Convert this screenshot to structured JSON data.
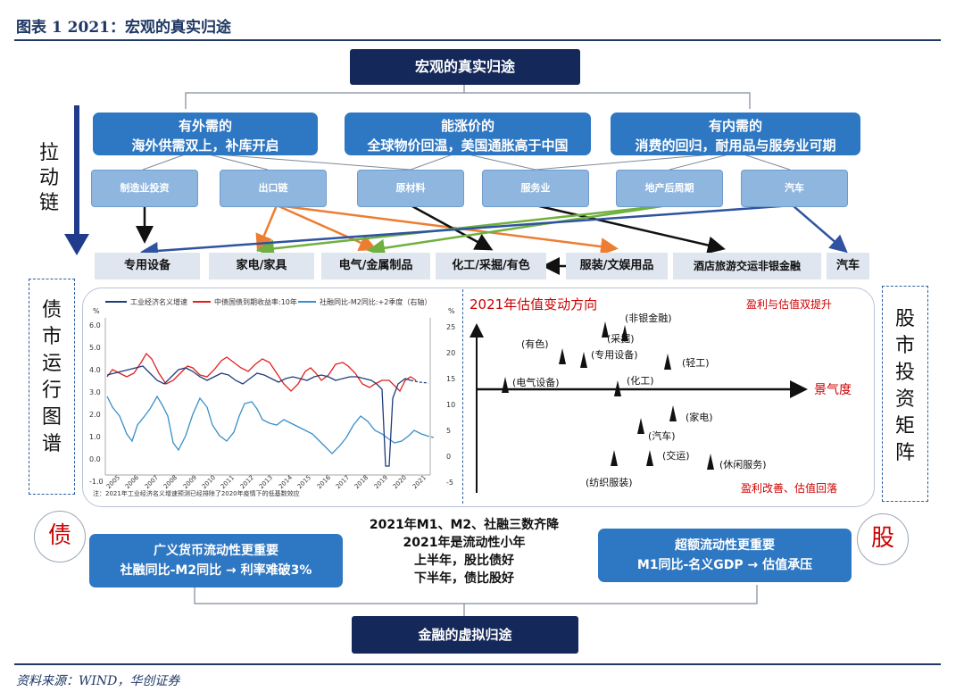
{
  "figure_title": "图表 1   2021：宏观的真实归途",
  "top_box": "宏观的真实归途",
  "left_vertical": "拉动链",
  "categories": [
    {
      "title": "有外需的",
      "subtitle": "海外供需双上，补库开启"
    },
    {
      "title": "能涨价的",
      "subtitle": "全球物价回温，美国通胀高于中国"
    },
    {
      "title": "有内需的",
      "subtitle": "消费的回归，耐用品与服务业可期"
    }
  ],
  "drivers": [
    "制造业投资",
    "出口链",
    "原材料",
    "服务业",
    "地产后周期",
    "汽车"
  ],
  "sectors": [
    "专用设备",
    "家电/家具",
    "电气/金属制品",
    "化工/采掘/有色",
    "服装/文娱用品",
    "酒店旅游交运非银金融",
    "汽车"
  ],
  "bond_map_label": "债市运行图谱",
  "stock_matrix_label": "股市投资矩阵",
  "line_chart": {
    "legend": [
      "工业经济名义增速",
      "中债国债到期收益率:10年",
      "社融同比-M2同比:+2季度（右轴）"
    ],
    "left_unit": "%",
    "right_unit": "%",
    "left_ticks": [
      "6.0",
      "5.0",
      "4.0",
      "3.0",
      "2.0",
      "1.0",
      "0.0",
      "-1.0"
    ],
    "right_ticks": [
      "25",
      "20",
      "15",
      "10",
      "5",
      "0",
      "-5"
    ],
    "x_ticks": [
      "2005",
      "2006",
      "2007",
      "2008",
      "2009",
      "2010",
      "2011",
      "2012",
      "2013",
      "2014",
      "2015",
      "2016",
      "2017",
      "2018",
      "2019",
      "2020",
      "2021"
    ],
    "note": "注：2021年工业经济名义增速预测已经排除了2020年疫情下的低基数效应",
    "colors": {
      "industrial": "#1f3d7a",
      "yield": "#e02020",
      "credit": "#3a8fc8"
    }
  },
  "matrix": {
    "title": "2021年估值变动方向",
    "top_right": "盈利与估值双提升",
    "bottom_right": "盈利改善、估值回落",
    "x_axis": "景气度",
    "items": [
      "非银金融",
      "采掘",
      "有色",
      "专用设备",
      "轻工",
      "电气设备",
      "化工",
      "家电",
      "汽车",
      "交运",
      "休闲服务",
      "纺织服装"
    ]
  },
  "center_text": [
    "2021年M1、M2、社融三数齐降",
    "2021年是流动性小年",
    "上半年，股比债好",
    "下半年，债比股好"
  ],
  "bond_circle": "债",
  "stock_circle": "股",
  "bond_box": {
    "line1": "广义货币流动性更重要",
    "line2": "社融同比-M2同比 → 利率难破3%"
  },
  "stock_box": {
    "line1": "超额流动性更重要",
    "line2": "M1同比-名义GDP → 估值承压"
  },
  "bottom_box": "金融的虚拟归途",
  "source": "资料来源：WIND，华创证券"
}
